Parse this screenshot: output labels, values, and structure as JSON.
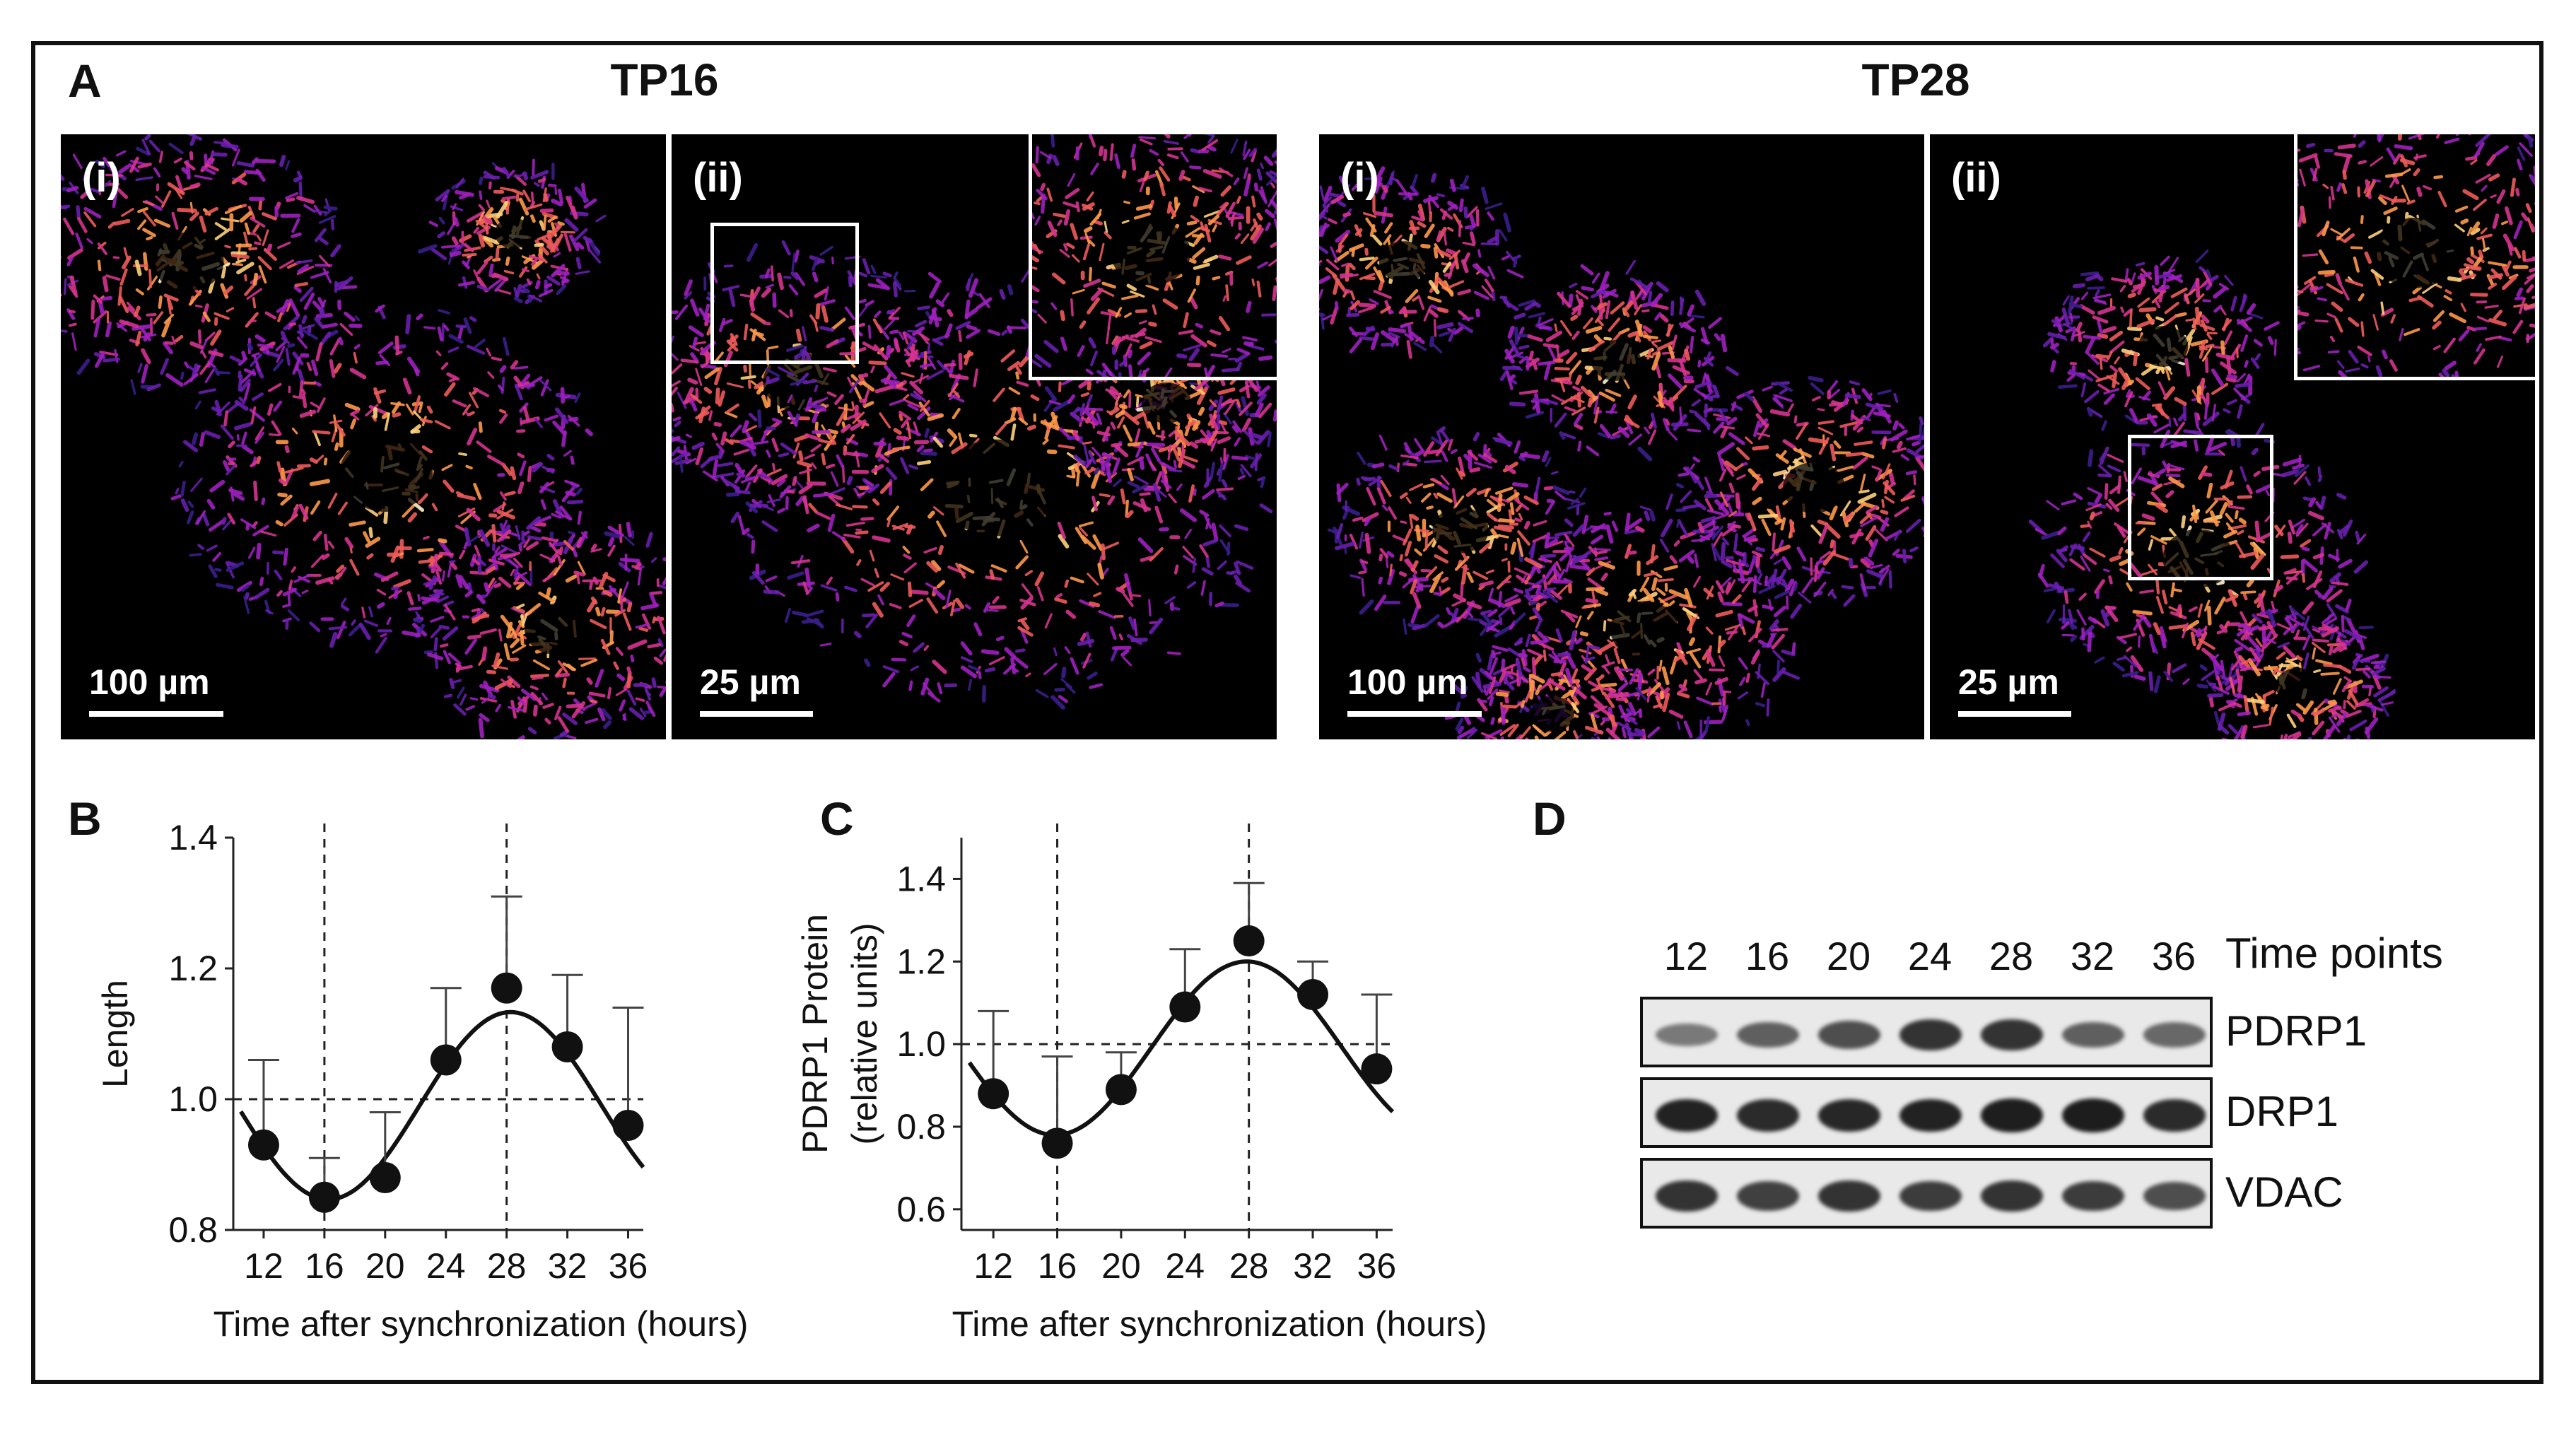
{
  "panels": {
    "a": {
      "letter": "A"
    },
    "b": {
      "letter": "B"
    },
    "c": {
      "letter": "C"
    },
    "d": {
      "letter": "D"
    }
  },
  "groups": [
    {
      "title": "TP16",
      "images": [
        {
          "label": "(i)",
          "scale": "100 µm",
          "inset": false
        },
        {
          "label": "(ii)",
          "scale": "25 µm",
          "inset": true
        }
      ]
    },
    {
      "title": "TP28",
      "images": [
        {
          "label": "(i)",
          "scale": "100 µm",
          "inset": false
        },
        {
          "label": "(ii)",
          "scale": "25 µm",
          "inset": true
        }
      ]
    }
  ],
  "chart_data": [
    {
      "panel": "B",
      "type": "line",
      "x": [
        12,
        16,
        20,
        24,
        28,
        32,
        36
      ],
      "series": [
        {
          "values": [
            0.93,
            0.85,
            0.88,
            1.06,
            1.17,
            1.08,
            0.96
          ],
          "error_upper": [
            1.06,
            0.91,
            0.98,
            1.17,
            1.31,
            1.19,
            1.14
          ]
        }
      ],
      "fit_curve": "cosinor",
      "xlabel": "Time after synchronization (hours)",
      "ylabel": "Length",
      "xticks": [
        "12",
        "16",
        "20",
        "24",
        "28",
        "32",
        "36"
      ],
      "yticks": [
        "0.8",
        "1.0",
        "1.2",
        "1.4"
      ],
      "ylim": [
        0.8,
        1.4
      ],
      "xlim": [
        10,
        37
      ],
      "reference_lines": {
        "y": 1.0,
        "x": [
          16,
          28
        ]
      }
    },
    {
      "panel": "C",
      "type": "line",
      "x": [
        12,
        16,
        20,
        24,
        28,
        32,
        36
      ],
      "series": [
        {
          "values": [
            0.88,
            0.76,
            0.89,
            1.09,
            1.25,
            1.12,
            0.94
          ],
          "error_upper": [
            1.08,
            0.97,
            0.98,
            1.23,
            1.39,
            1.2,
            1.12
          ]
        }
      ],
      "fit_curve": "cosinor",
      "xlabel": "Time after synchronization (hours)",
      "ylabel": [
        "PDRP1 Protein",
        "(relative units)"
      ],
      "xticks": [
        "12",
        "16",
        "20",
        "24",
        "28",
        "32",
        "36"
      ],
      "yticks": [
        "0.6",
        "0.8",
        "1.0",
        "1.2",
        "1.4"
      ],
      "ylim": [
        0.55,
        1.5
      ],
      "xlim": [
        10,
        37
      ],
      "reference_lines": {
        "y": 1.0,
        "x": [
          16,
          28
        ]
      }
    }
  ],
  "blot": {
    "time_points": [
      "12",
      "16",
      "20",
      "24",
      "28",
      "32",
      "36"
    ],
    "time_label": "Time points",
    "rows": [
      {
        "label": "PDRP1",
        "intensities": [
          0.45,
          0.6,
          0.7,
          0.85,
          0.85,
          0.6,
          0.55
        ]
      },
      {
        "label": "DRP1",
        "intensities": [
          0.95,
          0.9,
          0.92,
          0.95,
          0.97,
          0.98,
          0.9
        ]
      },
      {
        "label": "VDAC",
        "intensities": [
          0.85,
          0.78,
          0.85,
          0.8,
          0.85,
          0.8,
          0.7
        ]
      }
    ]
  }
}
